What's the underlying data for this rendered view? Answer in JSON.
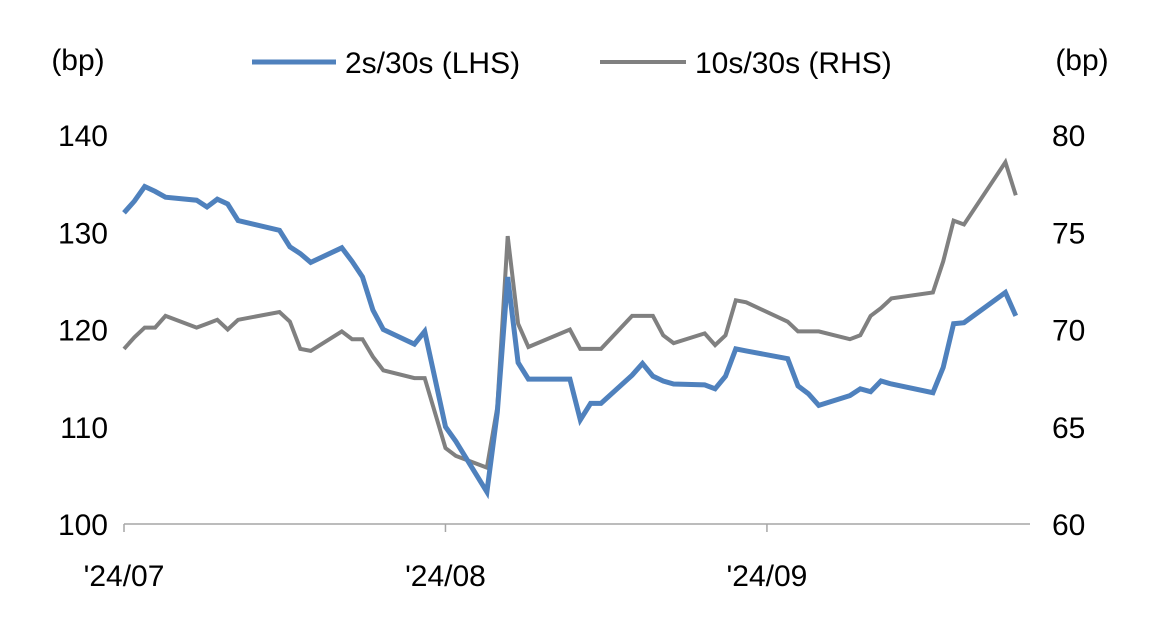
{
  "chart_data": {
    "type": "line",
    "legend_position": "top",
    "grid": false,
    "left_axis": {
      "unit_label": "(bp)",
      "ylim": [
        100,
        140
      ],
      "ticks": [
        "100",
        "110",
        "120",
        "130",
        "140"
      ]
    },
    "right_axis": {
      "unit_label": "(bp)",
      "ylim": [
        60,
        80
      ],
      "ticks": [
        "60",
        "65",
        "70",
        "75",
        "80"
      ]
    },
    "x_axis": {
      "range": [
        "2024-07-01",
        "2024-09-30"
      ],
      "ticks": [
        {
          "date": "2024-07-01",
          "label": "'24/07"
        },
        {
          "date": "2024-08-01",
          "label": "'24/08"
        },
        {
          "date": "2024-09-01",
          "label": "'24/09"
        }
      ]
    },
    "series": [
      {
        "name": "2s/30s (LHS)",
        "axis": "left",
        "color": "#4f81bd",
        "x": [
          "2024-07-01",
          "2024-07-02",
          "2024-07-03",
          "2024-07-04",
          "2024-07-05",
          "2024-07-08",
          "2024-07-09",
          "2024-07-10",
          "2024-07-11",
          "2024-07-12",
          "2024-07-16",
          "2024-07-17",
          "2024-07-18",
          "2024-07-19",
          "2024-07-22",
          "2024-07-23",
          "2024-07-24",
          "2024-07-25",
          "2024-07-26",
          "2024-07-29",
          "2024-07-30",
          "2024-08-01",
          "2024-08-02",
          "2024-08-05",
          "2024-08-06",
          "2024-08-07",
          "2024-08-08",
          "2024-08-09",
          "2024-08-13",
          "2024-08-14",
          "2024-08-15",
          "2024-08-16",
          "2024-08-19",
          "2024-08-20",
          "2024-08-21",
          "2024-08-22",
          "2024-08-23",
          "2024-08-26",
          "2024-08-27",
          "2024-08-28",
          "2024-08-29",
          "2024-08-30",
          "2024-09-03",
          "2024-09-04",
          "2024-09-05",
          "2024-09-06",
          "2024-09-09",
          "2024-09-10",
          "2024-09-11",
          "2024-09-12",
          "2024-09-13",
          "2024-09-17",
          "2024-09-18",
          "2024-09-19",
          "2024-09-20",
          "2024-09-24",
          "2024-09-25"
        ],
        "values": [
          132.0,
          133.2,
          134.7,
          134.2,
          133.6,
          133.3,
          132.6,
          133.4,
          132.9,
          131.2,
          130.2,
          128.5,
          127.8,
          126.9,
          128.4,
          127.0,
          125.4,
          122.0,
          120.0,
          118.5,
          119.8,
          110.0,
          108.5,
          103.3,
          111.5,
          125.4,
          116.6,
          114.9,
          114.9,
          110.7,
          112.4,
          112.4,
          115.3,
          116.5,
          115.2,
          114.7,
          114.4,
          114.3,
          113.9,
          115.2,
          118.0,
          117.8,
          117.0,
          114.2,
          113.4,
          112.2,
          113.2,
          113.9,
          113.6,
          114.7,
          114.4,
          113.5,
          116.1,
          120.6,
          120.7,
          123.8,
          121.4
        ]
      },
      {
        "name": "10s/30s (RHS)",
        "axis": "right",
        "color": "#808080",
        "x": [
          "2024-07-01",
          "2024-07-02",
          "2024-07-03",
          "2024-07-04",
          "2024-07-05",
          "2024-07-08",
          "2024-07-09",
          "2024-07-10",
          "2024-07-11",
          "2024-07-12",
          "2024-07-16",
          "2024-07-17",
          "2024-07-18",
          "2024-07-19",
          "2024-07-22",
          "2024-07-23",
          "2024-07-24",
          "2024-07-25",
          "2024-07-26",
          "2024-07-29",
          "2024-07-30",
          "2024-08-01",
          "2024-08-02",
          "2024-08-05",
          "2024-08-06",
          "2024-08-07",
          "2024-08-08",
          "2024-08-09",
          "2024-08-13",
          "2024-08-14",
          "2024-08-15",
          "2024-08-16",
          "2024-08-19",
          "2024-08-20",
          "2024-08-21",
          "2024-08-22",
          "2024-08-23",
          "2024-08-26",
          "2024-08-27",
          "2024-08-28",
          "2024-08-29",
          "2024-08-30",
          "2024-09-03",
          "2024-09-04",
          "2024-09-05",
          "2024-09-06",
          "2024-09-09",
          "2024-09-10",
          "2024-09-11",
          "2024-09-12",
          "2024-09-13",
          "2024-09-17",
          "2024-09-18",
          "2024-09-19",
          "2024-09-20",
          "2024-09-24",
          "2024-09-25"
        ],
        "values": [
          69.0,
          69.6,
          70.1,
          70.1,
          70.7,
          70.1,
          70.3,
          70.5,
          70.0,
          70.5,
          70.9,
          70.4,
          69.0,
          68.9,
          69.9,
          69.5,
          69.5,
          68.6,
          67.9,
          67.5,
          67.5,
          63.9,
          63.5,
          62.9,
          66.0,
          74.8,
          70.3,
          69.1,
          70.0,
          69.0,
          69.0,
          69.0,
          70.7,
          70.7,
          70.7,
          69.7,
          69.3,
          69.8,
          69.2,
          69.7,
          71.5,
          71.4,
          70.4,
          69.9,
          69.9,
          69.9,
          69.5,
          69.7,
          70.7,
          71.1,
          71.6,
          71.9,
          73.5,
          75.6,
          75.4,
          78.6,
          76.9
        ]
      }
    ]
  }
}
